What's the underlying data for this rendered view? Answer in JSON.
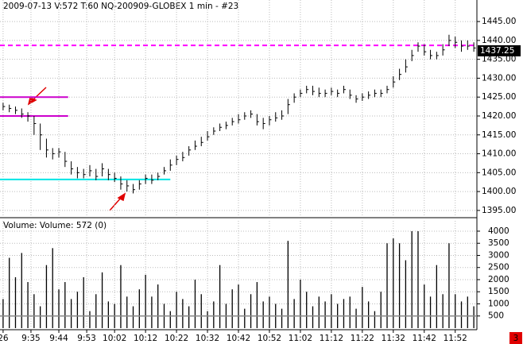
{
  "chart_data": {
    "type": "ohlc",
    "title": "2009-07-13  V:572  T:60  NQ-200909-GLOBEX  1 min  - #23",
    "x": [
      1,
      3,
      5,
      7,
      9,
      11,
      13,
      15,
      17,
      19,
      21,
      23,
      25,
      27,
      29,
      31,
      33,
      35,
      37,
      39,
      41,
      43,
      45,
      47,
      49,
      51,
      53,
      55,
      57,
      59,
      61,
      63,
      65,
      67,
      69,
      71,
      73,
      75,
      77,
      79,
      81,
      83,
      85,
      87,
      89,
      91,
      93,
      95,
      97,
      99,
      101,
      103,
      105,
      107,
      109,
      111,
      113,
      115,
      117,
      119,
      121,
      123,
      125,
      127,
      129,
      131,
      133,
      135,
      137,
      139,
      141,
      143,
      145,
      147,
      149,
      151,
      153
    ],
    "high": [
      1423.5,
      1423,
      1422.5,
      1422,
      1421,
      1420,
      1418,
      1414,
      1411.5,
      1411.5,
      1410.5,
      1408,
      1406.5,
      1406,
      1407,
      1406,
      1407.5,
      1406,
      1405,
      1404,
      1403,
      1402,
      1403,
      1404.5,
      1404.5,
      1405,
      1406.5,
      1408.5,
      1409.5,
      1410.5,
      1412,
      1413.5,
      1414.5,
      1416,
      1417,
      1418,
      1418.5,
      1419.5,
      1420.5,
      1421,
      1421.5,
      1420.5,
      1419.5,
      1420,
      1421,
      1421.5,
      1424.5,
      1426,
      1427,
      1428,
      1428,
      1427.5,
      1427,
      1427.5,
      1427,
      1428,
      1427,
      1425.5,
      1426,
      1426.5,
      1427,
      1427,
      1428,
      1430.5,
      1432.5,
      1435,
      1437.5,
      1439.5,
      1439,
      1437.5,
      1437,
      1439,
      1441.5,
      1441,
      1440,
      1440,
      1439.5
    ],
    "low": [
      1421.5,
      1421,
      1420.5,
      1419.5,
      1418.5,
      1415,
      1411,
      1409,
      1408.5,
      1409,
      1406.5,
      1404.5,
      1403.5,
      1403.5,
      1404,
      1403,
      1404,
      1403,
      1402.5,
      1400.5,
      1400,
      1399.5,
      1400.5,
      1402,
      1402,
      1403,
      1404.5,
      1405.5,
      1407,
      1408,
      1409.5,
      1411,
      1412,
      1413.5,
      1415,
      1416,
      1416.5,
      1417.5,
      1418,
      1419,
      1419.5,
      1417.5,
      1416.5,
      1417.5,
      1418.5,
      1419,
      1420.5,
      1423.5,
      1425,
      1426,
      1425.5,
      1425,
      1425,
      1425.5,
      1425,
      1426,
      1424.5,
      1423.5,
      1424,
      1424.5,
      1425,
      1425,
      1426,
      1427.5,
      1429.5,
      1431.5,
      1434.5,
      1437,
      1436,
      1435,
      1435,
      1436,
      1438.5,
      1438,
      1437,
      1437.5,
      1437
    ],
    "close": [
      1422.5,
      1422,
      1421.5,
      1420.5,
      1420,
      1418,
      1415,
      1411,
      1410,
      1410.5,
      1408,
      1406,
      1405,
      1404.5,
      1405.5,
      1404,
      1406,
      1404.5,
      1403.5,
      1402,
      1401.5,
      1400.5,
      1402,
      1403.5,
      1403,
      1404,
      1405.5,
      1407,
      1408.5,
      1409,
      1411,
      1412,
      1413,
      1414.5,
      1416,
      1417,
      1417.5,
      1418.5,
      1419,
      1420,
      1420.5,
      1418.5,
      1418,
      1419,
      1419.5,
      1420,
      1423,
      1425,
      1426,
      1427,
      1426.5,
      1426,
      1426,
      1426.5,
      1426,
      1427,
      1425.5,
      1424.5,
      1425,
      1425.5,
      1426,
      1426,
      1427,
      1429,
      1431,
      1433,
      1436,
      1438.5,
      1437,
      1436,
      1436,
      1437.5,
      1440,
      1439.5,
      1438.5,
      1438.5,
      1438
    ],
    "color": "#000000",
    "last_price": 1437.25,
    "xlim": [
      0,
      154
    ],
    "xticks": [
      {
        "value": 1,
        "label": "26"
      },
      {
        "value": 10,
        "label": "9:35"
      },
      {
        "value": 19,
        "label": "9:44"
      },
      {
        "value": 28,
        "label": "9:53"
      },
      {
        "value": 37,
        "label": "10:02"
      },
      {
        "value": 47,
        "label": "10:12"
      },
      {
        "value": 57,
        "label": "10:22"
      },
      {
        "value": 67,
        "label": "10:32"
      },
      {
        "value": 77,
        "label": "10:42"
      },
      {
        "value": 87,
        "label": "10:52"
      },
      {
        "value": 97,
        "label": "11:02"
      },
      {
        "value": 107,
        "label": "11:12"
      },
      {
        "value": 117,
        "label": "11:22"
      },
      {
        "value": 127,
        "label": "11:32"
      },
      {
        "value": 137,
        "label": "11:42"
      },
      {
        "value": 147,
        "label": "11:52"
      }
    ],
    "ylim": [
      1393.5,
      1450.7
    ],
    "yticks": [
      {
        "value": 1395,
        "label": "1395.00"
      },
      {
        "value": 1400,
        "label": "1400.00"
      },
      {
        "value": 1405,
        "label": "1405.00"
      },
      {
        "value": 1410,
        "label": "1410.00"
      },
      {
        "value": 1415,
        "label": "1415.00"
      },
      {
        "value": 1420,
        "label": "1420.00"
      },
      {
        "value": 1425,
        "label": "1425.00"
      },
      {
        "value": 1430,
        "label": "1430.00"
      },
      {
        "value": 1435,
        "label": "1435.00"
      },
      {
        "value": 1440,
        "label": "1440.00"
      },
      {
        "value": 1445,
        "label": "1445.00"
      }
    ],
    "grid": true,
    "levels": [
      {
        "value": 1438.7,
        "color": "#ff00ff",
        "dashed": true,
        "end_x": 154
      },
      {
        "value": 1425,
        "color": "#cc00cc",
        "dashed": false,
        "end_x": 22
      },
      {
        "value": 1420,
        "color": "#cc00cc",
        "dashed": false,
        "end_x": 22
      },
      {
        "value": 1403.2,
        "color": "#00e5e5",
        "dashed": false,
        "end_x": 55
      }
    ],
    "volume": {
      "title": "Volume:  Volume: 572  (0)",
      "values": [
        1200,
        2900,
        2100,
        3100,
        1900,
        1400,
        900,
        2600,
        3300,
        1600,
        1900,
        1200,
        1500,
        2100,
        700,
        1400,
        2300,
        1100,
        1000,
        2600,
        1300,
        900,
        1600,
        2200,
        1300,
        1800,
        1000,
        700,
        1500,
        1200,
        900,
        2000,
        1400,
        700,
        1100,
        2600,
        1000,
        1600,
        1800,
        800,
        1400,
        1900,
        1100,
        1300,
        1000,
        800,
        3600,
        1200,
        2000,
        1500,
        900,
        1300,
        1100,
        1400,
        1000,
        1200,
        1300,
        800,
        1700,
        1100,
        700,
        1500,
        3500,
        3700,
        3500,
        2800,
        4000,
        4000,
        1800,
        1300,
        2600,
        1400,
        3500,
        1400,
        1100,
        1300,
        900
      ],
      "color": "#000000",
      "average": 500,
      "ylim": [
        0,
        4425
      ],
      "yticks": [
        500,
        1000,
        1500,
        2000,
        2500,
        3000,
        3500,
        4000
      ]
    },
    "page_badge": "3"
  }
}
